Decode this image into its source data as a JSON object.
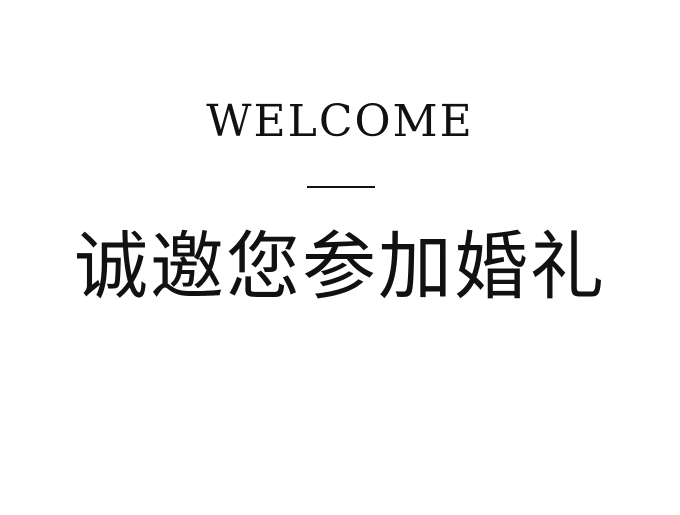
{
  "header": {
    "welcome": "WELCOME"
  },
  "main": {
    "invitation": "诚邀您参加婚礼"
  },
  "colors": {
    "background": "#ffffff",
    "text": "#111111"
  }
}
